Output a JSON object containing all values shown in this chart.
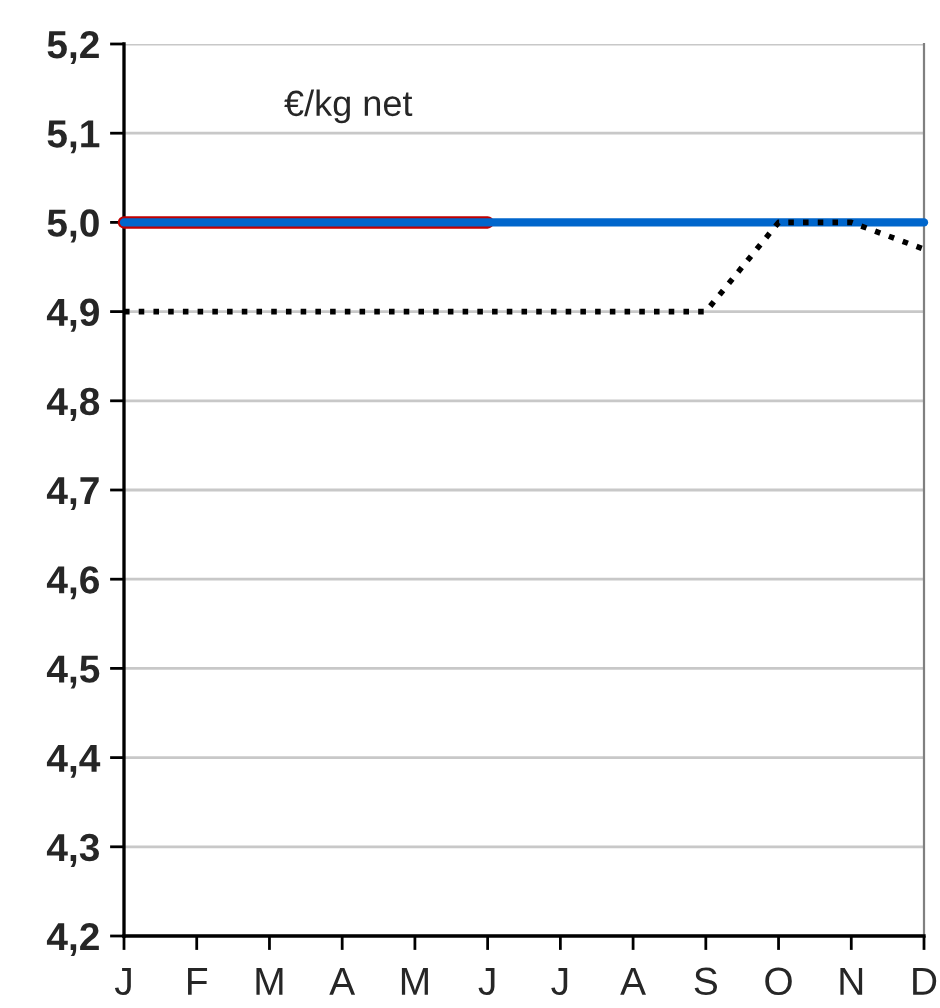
{
  "chart_data": {
    "type": "line",
    "categories": [
      "J",
      "F",
      "M",
      "A",
      "M",
      "J",
      "J",
      "A",
      "S",
      "O",
      "N",
      "D"
    ],
    "series": [
      {
        "color": "#c00000",
        "values": [
          5.0,
          5.0,
          5.0,
          5.0,
          5.0,
          5.0,
          null,
          null,
          null,
          null,
          null,
          null
        ]
      },
      {
        "color": "#0066cc",
        "values": [
          5.0,
          5.0,
          5.0,
          5.0,
          5.0,
          5.0,
          5.0,
          5.0,
          5.0,
          5.0,
          5.0,
          5.0
        ]
      },
      {
        "color": "#000000",
        "line_style": "dotted",
        "values": [
          4.9,
          4.9,
          4.9,
          4.9,
          4.9,
          4.9,
          4.9,
          4.9,
          4.9,
          5.0,
          5.0,
          4.97
        ]
      }
    ],
    "ylim": [
      4.2,
      5.2
    ],
    "yticks": [
      {
        "value": 4.2,
        "label": "4,2"
      },
      {
        "value": 4.3,
        "label": "4,3"
      },
      {
        "value": 4.4,
        "label": "4,4"
      },
      {
        "value": 4.5,
        "label": "4,5"
      },
      {
        "value": 4.6,
        "label": "4,6"
      },
      {
        "value": 4.7,
        "label": "4,7"
      },
      {
        "value": 4.8,
        "label": "4,8"
      },
      {
        "value": 4.9,
        "label": "4,9"
      },
      {
        "value": 5.0,
        "label": "5,0"
      },
      {
        "value": 5.1,
        "label": "5,1"
      },
      {
        "value": 5.2,
        "label": "5,2"
      }
    ],
    "grid": "y",
    "annotations": [
      "€/kg net"
    ]
  }
}
